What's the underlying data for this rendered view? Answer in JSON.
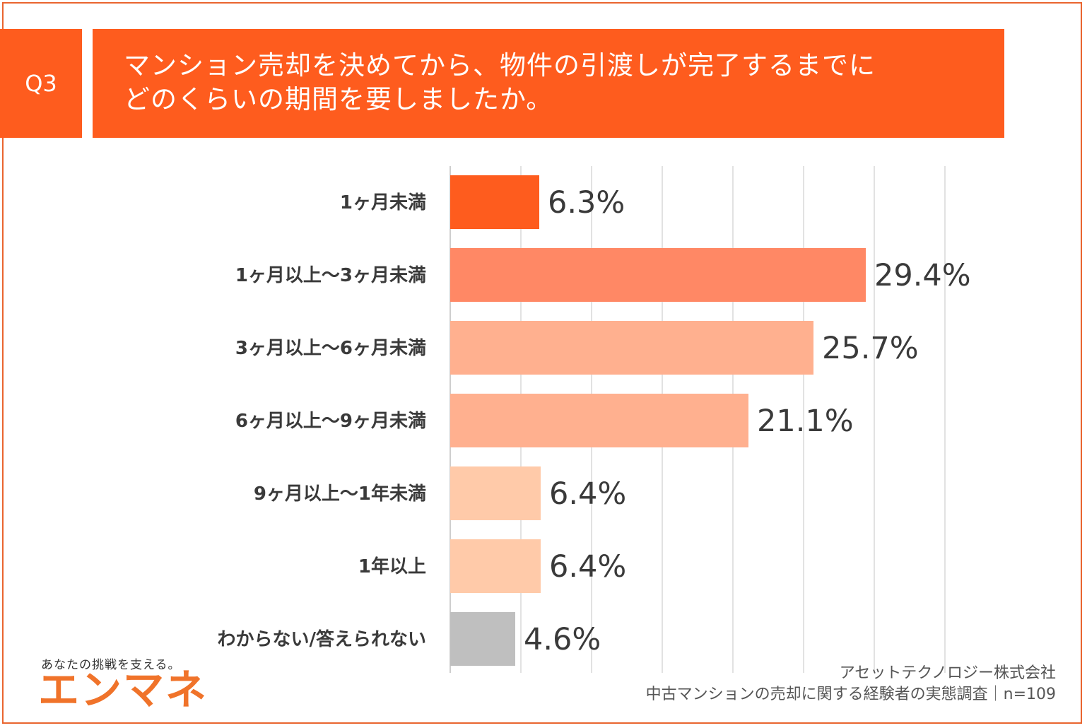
{
  "header": {
    "badge": "Q3",
    "question_line1": "マンション売却を決めてから、物件の引渡しが完了するまでに",
    "question_line2": "どのくらいの期間を要しましたか。"
  },
  "chart_data": {
    "type": "bar",
    "orientation": "horizontal",
    "title": "マンション売却を決めてから、物件の引渡しが完了するまでにどのくらいの期間を要しましたか。",
    "categories": [
      "1ヶ月未満",
      "1ヶ月以上〜3ヶ月未満",
      "3ヶ月以上〜6ヶ月未満",
      "6ヶ月以上〜9ヶ月未満",
      "9ヶ月以上〜1年未満",
      "1年以上",
      "わからない/答えられない"
    ],
    "values": [
      6.3,
      29.4,
      25.7,
      21.1,
      6.4,
      6.4,
      4.6
    ],
    "value_labels": [
      "6.3%",
      "29.4%",
      "25.7%",
      "21.1%",
      "6.4%",
      "6.4%",
      "4.6%"
    ],
    "colors": [
      "#fe5c1e",
      "#ff8865",
      "#ffb08f",
      "#ffb08f",
      "#ffcaa9",
      "#ffcaa9",
      "#bfbfbf"
    ],
    "xlim": [
      0,
      35
    ],
    "grid": true,
    "xlabel": "",
    "ylabel": ""
  },
  "footer": {
    "tagline": "あなたの挑戦を支える。",
    "brand": "エンマネ",
    "source_line1": "アセットテクノロジー株式会社",
    "source_line2": "中古マンションの売却に関する経験者の実態調査｜n=109"
  }
}
